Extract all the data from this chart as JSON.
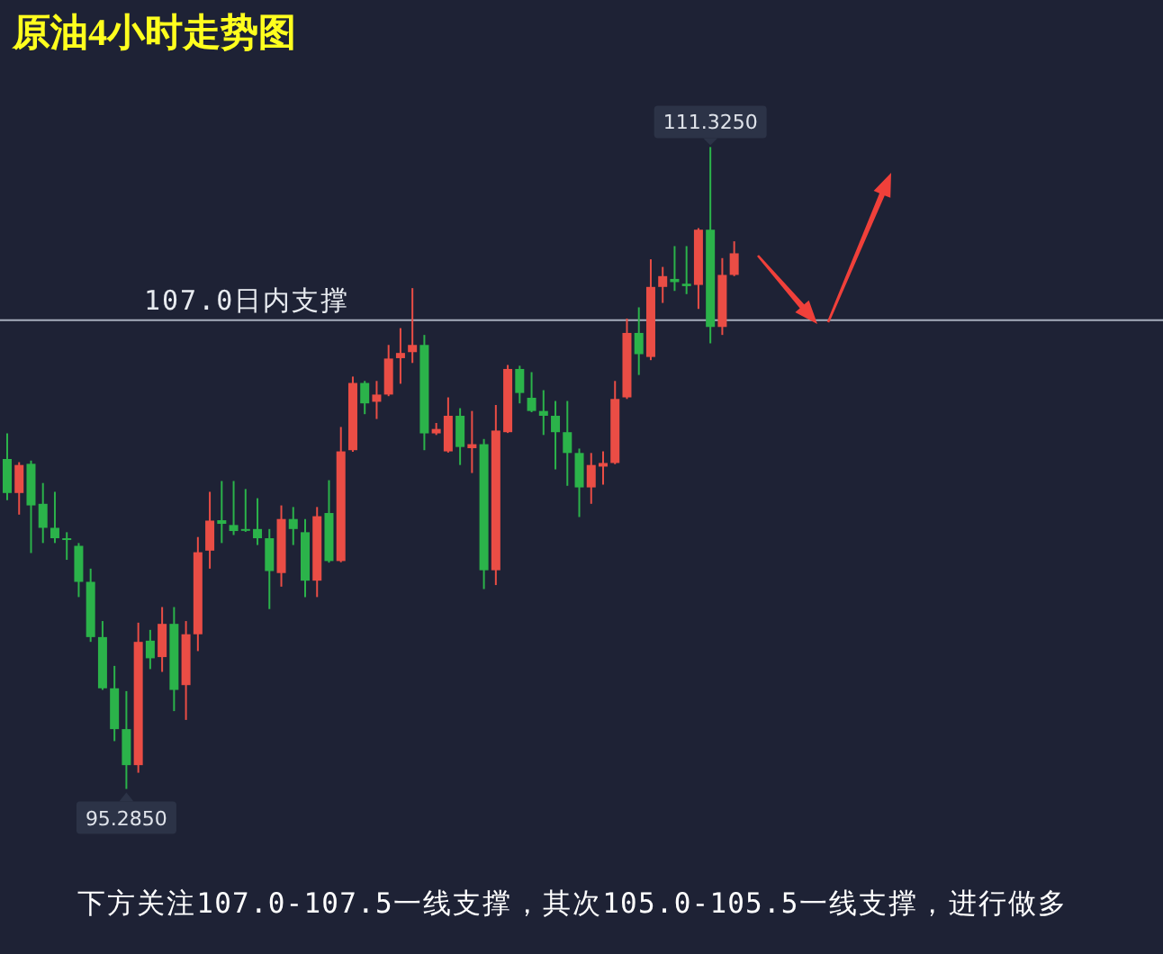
{
  "chart_data": {
    "type": "candlestick",
    "title": "原油4小时走势图",
    "categories": [
      null,
      null,
      null,
      null,
      null,
      null,
      null,
      null,
      null,
      null,
      null,
      null,
      null,
      null,
      null,
      null,
      null,
      null,
      null,
      null,
      null,
      null,
      null,
      null,
      null,
      null,
      null,
      null,
      null,
      null,
      null,
      null,
      null,
      null,
      null,
      null,
      null,
      null,
      null,
      null,
      null,
      null,
      null,
      null,
      null,
      null,
      null,
      null,
      null,
      null,
      null,
      null,
      null,
      null,
      null,
      null,
      null,
      null,
      null,
      null,
      null,
      null
    ],
    "ohlc": [
      [
        103.53,
        104.17,
        102.5,
        102.68
      ],
      [
        102.68,
        103.45,
        102.14,
        103.38
      ],
      [
        103.41,
        103.49,
        101.18,
        102.37
      ],
      [
        102.41,
        102.93,
        101.43,
        101.81
      ],
      [
        101.81,
        102.71,
        101.43,
        101.55
      ],
      [
        101.55,
        101.7,
        101.01,
        101.51
      ],
      [
        101.36,
        101.43,
        100.08,
        100.46
      ],
      [
        100.46,
        100.79,
        98.96,
        99.08
      ],
      [
        99.08,
        99.48,
        97.76,
        97.8
      ],
      [
        97.8,
        98.36,
        96.48,
        96.78
      ],
      [
        96.78,
        97.73,
        95.285,
        95.88
      ],
      [
        95.88,
        99.44,
        95.69,
        98.96
      ],
      [
        98.99,
        99.26,
        98.28,
        98.55
      ],
      [
        98.58,
        99.83,
        98.21,
        99.41
      ],
      [
        99.41,
        99.83,
        97.23,
        97.76
      ],
      [
        97.88,
        99.48,
        97.01,
        99.15
      ],
      [
        99.15,
        101.58,
        98.73,
        101.2
      ],
      [
        101.24,
        102.71,
        100.79,
        101.99
      ],
      [
        102.0,
        102.98,
        101.43,
        101.91
      ],
      [
        101.88,
        102.98,
        101.63,
        101.73
      ],
      [
        101.78,
        102.78,
        101.71,
        101.74
      ],
      [
        101.78,
        102.55,
        101.38,
        101.55
      ],
      [
        101.55,
        101.78,
        99.78,
        100.73
      ],
      [
        100.68,
        102.37,
        100.34,
        102.03
      ],
      [
        102.03,
        102.33,
        101.38,
        101.78
      ],
      [
        101.7,
        102.03,
        100.08,
        100.49
      ],
      [
        100.49,
        102.33,
        100.08,
        102.1
      ],
      [
        102.18,
        103.0,
        100.94,
        100.98
      ],
      [
        100.98,
        104.33,
        100.95,
        103.72
      ],
      [
        103.75,
        105.59,
        103.71,
        105.43
      ],
      [
        105.43,
        105.48,
        104.65,
        104.92
      ],
      [
        104.96,
        105.48,
        104.53,
        105.14
      ],
      [
        105.14,
        106.38,
        105.1,
        106.04
      ],
      [
        106.05,
        106.8,
        105.41,
        106.18
      ],
      [
        106.2,
        107.8,
        105.93,
        106.38
      ],
      [
        106.38,
        106.63,
        103.75,
        104.17
      ],
      [
        104.17,
        104.43,
        104.13,
        104.28
      ],
      [
        103.72,
        105.07,
        103.69,
        104.61
      ],
      [
        104.61,
        104.8,
        103.38,
        103.83
      ],
      [
        103.8,
        104.73,
        103.18,
        103.9
      ],
      [
        103.9,
        104.03,
        100.28,
        100.75
      ],
      [
        100.75,
        104.88,
        100.38,
        104.24
      ],
      [
        104.2,
        105.88,
        104.18,
        105.78
      ],
      [
        105.78,
        105.86,
        104.92,
        105.18
      ],
      [
        105.06,
        105.7,
        104.7,
        104.73
      ],
      [
        104.73,
        105.25,
        104.13,
        104.61
      ],
      [
        104.61,
        104.98,
        103.27,
        104.2
      ],
      [
        104.2,
        104.98,
        102.86,
        103.68
      ],
      [
        103.68,
        103.79,
        102.08,
        102.82
      ],
      [
        102.82,
        103.68,
        102.41,
        103.38
      ],
      [
        103.34,
        103.72,
        102.89,
        103.43
      ],
      [
        103.43,
        105.48,
        103.4,
        105.03
      ],
      [
        105.07,
        107.04,
        105.03,
        106.68
      ],
      [
        106.68,
        107.32,
        105.63,
        106.15
      ],
      [
        106.08,
        108.52,
        106.0,
        107.83
      ],
      [
        107.83,
        108.33,
        107.43,
        108.1
      ],
      [
        108.03,
        108.85,
        107.73,
        107.95
      ],
      [
        107.91,
        108.85,
        107.65,
        107.85
      ],
      [
        107.88,
        109.3,
        107.28,
        109.26
      ],
      [
        109.26,
        111.325,
        106.42,
        106.83
      ],
      [
        106.83,
        108.55,
        106.63,
        108.13
      ],
      [
        108.13,
        108.97,
        108.1,
        108.67
      ]
    ],
    "colors": [
      "#2bb34a",
      "#ea4d45",
      "#2bb34a",
      "#2bb34a",
      "#2bb34a",
      "#2bb34a",
      "#2bb34a",
      "#2bb34a",
      "#2bb34a",
      "#2bb34a",
      "#2bb34a",
      "#ea4d45",
      "#2bb34a",
      "#ea4d45",
      "#2bb34a",
      "#ea4d45",
      "#ea4d45",
      "#ea4d45",
      "#2bb34a",
      "#2bb34a",
      "#2bb34a",
      "#2bb34a",
      "#2bb34a",
      "#ea4d45",
      "#2bb34a",
      "#2bb34a",
      "#ea4d45",
      "#2bb34a",
      "#ea4d45",
      "#ea4d45",
      "#2bb34a",
      "#ea4d45",
      "#ea4d45",
      "#ea4d45",
      "#ea4d45",
      "#2bb34a",
      "#ea4d45",
      "#ea4d45",
      "#2bb34a",
      "#ea4d45",
      "#2bb34a",
      "#ea4d45",
      "#ea4d45",
      "#2bb34a",
      "#2bb34a",
      "#2bb34a",
      "#2bb34a",
      "#2bb34a",
      "#2bb34a",
      "#ea4d45",
      "#ea4d45",
      "#ea4d45",
      "#ea4d45",
      "#2bb34a",
      "#ea4d45",
      "#ea4d45",
      "#2bb34a",
      "#2bb34a",
      "#ea4d45",
      "#2bb34a",
      "#ea4d45",
      "#ea4d45"
    ],
    "ref_lines": [
      {
        "axis": "y",
        "value": 107.0,
        "label": "107.0日内支撑",
        "color": "#a7aebd"
      }
    ],
    "annotations": [
      {
        "text": "111.3250",
        "y": 111.325
      },
      {
        "text": "95.2850",
        "y": 95.285
      },
      "下方关注107.0-107.5一线支撑，其次105.0-105.5一线支撑，进行做多"
    ]
  }
}
